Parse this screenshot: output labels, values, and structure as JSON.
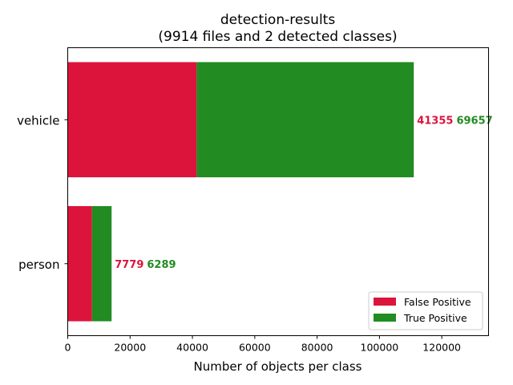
{
  "chart_data": {
    "type": "bar",
    "orientation": "horizontal",
    "stacked": true,
    "title_line1": "detection-results",
    "title_line2": "(9914 files and 2 detected classes)",
    "xlabel": "Number of objects per class",
    "ylabel": "",
    "xlim": [
      0,
      135000
    ],
    "xticks": [
      0,
      20000,
      40000,
      60000,
      80000,
      100000,
      120000
    ],
    "xtick_labels": [
      "0",
      "20000",
      "40000",
      "60000",
      "80000",
      "100000",
      "120000"
    ],
    "categories": [
      "vehicle",
      "person"
    ],
    "series": [
      {
        "name": "False Positive",
        "color": "#dc143c",
        "values": [
          41355,
          7779
        ]
      },
      {
        "name": "True Positive",
        "color": "#228b22",
        "values": [
          69657,
          6289
        ]
      }
    ],
    "data_labels": [
      {
        "category": "vehicle",
        "fp": "41355",
        "tp": "69657"
      },
      {
        "category": "person",
        "fp": "7779",
        "tp": "6289"
      }
    ],
    "legend_position": "lower-right",
    "grid": false
  }
}
